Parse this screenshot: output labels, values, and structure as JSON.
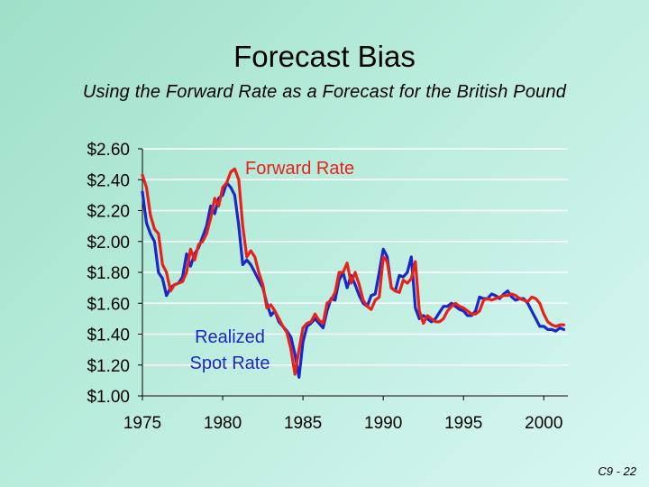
{
  "slide": {
    "title": "Forecast Bias",
    "subtitle": "Using the Forward Rate as a Forecast for the British Pound",
    "footer": "C9 - 22"
  },
  "colors": {
    "forward": "#e8221b",
    "spot": "#1c27c8",
    "grid": "#ffffff",
    "axis": "#000000"
  },
  "chart_data": {
    "type": "line",
    "title": "",
    "xlabel": "",
    "ylabel": "",
    "xlim": [
      1975,
      2001.5
    ],
    "ylim": [
      1.0,
      2.6
    ],
    "y_ticks": [
      1.0,
      1.2,
      1.4,
      1.6,
      1.8,
      2.0,
      2.2,
      2.4,
      2.6
    ],
    "y_tick_labels": [
      "$1.00",
      "$1.20",
      "$1.40",
      "$1.60",
      "$1.80",
      "$2.00",
      "$2.20",
      "$2.40",
      "$2.60"
    ],
    "x_ticks": [
      1975,
      1980,
      1985,
      1990,
      1995,
      2000
    ],
    "x_tick_labels": [
      "1975",
      "1980",
      "1985",
      "1990",
      "1995",
      "2000"
    ],
    "grid": true,
    "annotations": [
      {
        "text": "Forward Rate",
        "series": "Forward Rate"
      },
      {
        "text": "Realized\nSpot Rate",
        "series": "Realized Spot Rate"
      }
    ],
    "series": [
      {
        "name": "Forward Rate",
        "x": [
          1975.0,
          1975.25,
          1975.5,
          1975.75,
          1976.0,
          1976.25,
          1976.5,
          1976.75,
          1977.0,
          1977.25,
          1977.5,
          1977.75,
          1978.0,
          1978.25,
          1978.5,
          1978.75,
          1979.0,
          1979.25,
          1979.5,
          1979.75,
          1980.0,
          1980.25,
          1980.5,
          1980.75,
          1981.0,
          1981.25,
          1981.5,
          1981.75,
          1982.0,
          1982.25,
          1982.5,
          1982.75,
          1983.0,
          1983.25,
          1983.5,
          1983.75,
          1984.0,
          1984.25,
          1984.5,
          1984.75,
          1985.0,
          1985.25,
          1985.5,
          1985.75,
          1986.0,
          1986.25,
          1986.5,
          1986.75,
          1987.0,
          1987.25,
          1987.5,
          1987.75,
          1988.0,
          1988.25,
          1988.5,
          1988.75,
          1989.0,
          1989.25,
          1989.5,
          1989.75,
          1990.0,
          1990.25,
          1990.5,
          1990.75,
          1991.0,
          1991.25,
          1991.5,
          1991.75,
          1992.0,
          1992.25,
          1992.5,
          1992.75,
          1993.0,
          1993.25,
          1993.5,
          1993.75,
          1994.0,
          1994.25,
          1994.5,
          1994.75,
          1995.0,
          1995.25,
          1995.5,
          1995.75,
          1996.0,
          1996.25,
          1996.5,
          1996.75,
          1997.0,
          1997.25,
          1997.5,
          1997.75,
          1998.0,
          1998.25,
          1998.5,
          1998.75,
          1999.0,
          1999.25,
          1999.5,
          1999.75,
          2000.0,
          2000.25,
          2000.5,
          2000.75,
          2001.0,
          2001.25
        ],
        "y": [
          2.43,
          2.35,
          2.17,
          2.08,
          2.05,
          1.85,
          1.8,
          1.68,
          1.72,
          1.73,
          1.74,
          1.8,
          1.95,
          1.88,
          1.98,
          2.0,
          2.05,
          2.15,
          2.28,
          2.23,
          2.35,
          2.38,
          2.45,
          2.47,
          2.4,
          2.1,
          1.9,
          1.94,
          1.9,
          1.8,
          1.72,
          1.57,
          1.59,
          1.55,
          1.5,
          1.45,
          1.41,
          1.3,
          1.14,
          1.3,
          1.44,
          1.47,
          1.48,
          1.53,
          1.49,
          1.47,
          1.6,
          1.62,
          1.67,
          1.8,
          1.8,
          1.86,
          1.73,
          1.8,
          1.72,
          1.62,
          1.58,
          1.56,
          1.62,
          1.64,
          1.9,
          1.87,
          1.7,
          1.68,
          1.67,
          1.75,
          1.73,
          1.76,
          1.87,
          1.55,
          1.47,
          1.52,
          1.5,
          1.48,
          1.48,
          1.5,
          1.55,
          1.58,
          1.6,
          1.58,
          1.57,
          1.55,
          1.53,
          1.53,
          1.55,
          1.62,
          1.63,
          1.62,
          1.63,
          1.64,
          1.65,
          1.65,
          1.66,
          1.65,
          1.63,
          1.62,
          1.61,
          1.64,
          1.63,
          1.6,
          1.53,
          1.48,
          1.46,
          1.45,
          1.46,
          1.46
        ]
      },
      {
        "name": "Realized Spot Rate",
        "x": [
          1975.0,
          1975.25,
          1975.5,
          1975.75,
          1976.0,
          1976.25,
          1976.5,
          1976.75,
          1977.0,
          1977.25,
          1977.5,
          1977.75,
          1978.0,
          1978.25,
          1978.5,
          1978.75,
          1979.0,
          1979.25,
          1979.5,
          1979.75,
          1980.0,
          1980.25,
          1980.5,
          1980.75,
          1981.0,
          1981.25,
          1981.5,
          1981.75,
          1982.0,
          1982.25,
          1982.5,
          1982.75,
          1983.0,
          1983.25,
          1983.5,
          1983.75,
          1984.0,
          1984.25,
          1984.5,
          1984.75,
          1985.0,
          1985.25,
          1985.5,
          1985.75,
          1986.0,
          1986.25,
          1986.5,
          1986.75,
          1987.0,
          1987.25,
          1987.5,
          1987.75,
          1988.0,
          1988.25,
          1988.5,
          1988.75,
          1989.0,
          1989.25,
          1989.5,
          1989.75,
          1990.0,
          1990.25,
          1990.5,
          1990.75,
          1991.0,
          1991.25,
          1991.5,
          1991.75,
          1992.0,
          1992.25,
          1992.5,
          1992.75,
          1993.0,
          1993.25,
          1993.5,
          1993.75,
          1994.0,
          1994.25,
          1994.5,
          1994.75,
          1995.0,
          1995.25,
          1995.5,
          1995.75,
          1996.0,
          1996.25,
          1996.5,
          1996.75,
          1997.0,
          1997.25,
          1997.5,
          1997.75,
          1998.0,
          1998.25,
          1998.5,
          1998.75,
          1999.0,
          1999.25,
          1999.5,
          1999.75,
          2000.0,
          2000.25,
          2000.5,
          2000.75,
          2001.0,
          2001.25
        ],
        "y": [
          2.32,
          2.12,
          2.05,
          2.0,
          1.8,
          1.76,
          1.65,
          1.7,
          1.72,
          1.73,
          1.77,
          1.92,
          1.84,
          1.92,
          1.96,
          2.03,
          2.1,
          2.23,
          2.18,
          2.28,
          2.3,
          2.38,
          2.35,
          2.3,
          2.1,
          1.85,
          1.88,
          1.85,
          1.8,
          1.75,
          1.7,
          1.6,
          1.52,
          1.55,
          1.48,
          1.45,
          1.42,
          1.38,
          1.27,
          1.12,
          1.35,
          1.45,
          1.47,
          1.5,
          1.47,
          1.44,
          1.55,
          1.63,
          1.62,
          1.75,
          1.8,
          1.7,
          1.78,
          1.72,
          1.65,
          1.6,
          1.58,
          1.65,
          1.66,
          1.8,
          1.95,
          1.9,
          1.7,
          1.68,
          1.78,
          1.77,
          1.8,
          1.9,
          1.57,
          1.5,
          1.52,
          1.5,
          1.48,
          1.5,
          1.54,
          1.58,
          1.58,
          1.6,
          1.58,
          1.56,
          1.55,
          1.52,
          1.52,
          1.55,
          1.64,
          1.63,
          1.63,
          1.66,
          1.65,
          1.63,
          1.66,
          1.68,
          1.64,
          1.62,
          1.63,
          1.63,
          1.6,
          1.55,
          1.5,
          1.45,
          1.45,
          1.43,
          1.43,
          1.42,
          1.44,
          1.43
        ]
      }
    ]
  }
}
